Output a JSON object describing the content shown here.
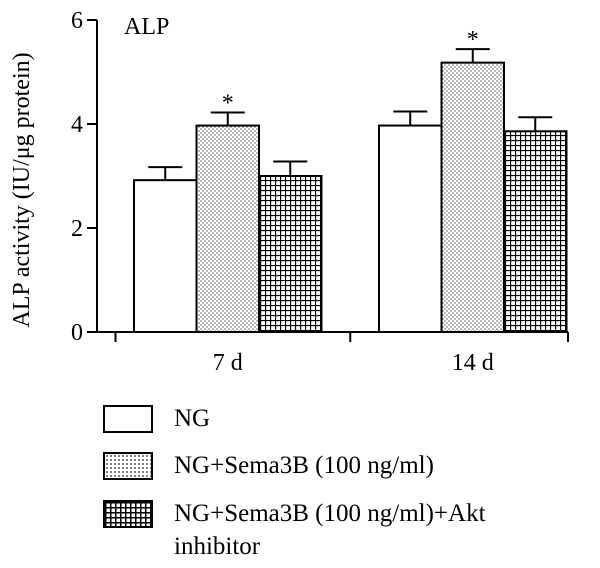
{
  "chart_data": {
    "type": "bar",
    "panel_label": "ALP",
    "ylabel": "ALP activity (IU/μg protein)",
    "xlabel": "",
    "ylim": [
      0,
      6
    ],
    "yticks": [
      0,
      2,
      4,
      6
    ],
    "categories": [
      "7 d",
      "14 d"
    ],
    "series": [
      {
        "name": "NG",
        "values": [
          2.92,
          3.97
        ],
        "errors": [
          0.25,
          0.27
        ],
        "fill": "white"
      },
      {
        "name": "NG+Sema3B (100 ng/ml)",
        "values": [
          3.97,
          5.18
        ],
        "errors": [
          0.25,
          0.26
        ],
        "fill": "dots"
      },
      {
        "name": "NG+Sema3B (100 ng/ml)+Akt inhibitor",
        "values": [
          3.0,
          3.86
        ],
        "errors": [
          0.28,
          0.27
        ],
        "fill": "grid"
      }
    ],
    "annotations": [
      {
        "text": "*",
        "category": "7 d",
        "series": 1
      },
      {
        "text": "*",
        "category": "14 d",
        "series": 1
      }
    ],
    "grid": false,
    "legend_position": "bottom"
  },
  "legend": {
    "line1_item3": "NG+Sema3B (100 ng/ml)+Akt",
    "line2_item3": "inhibitor"
  }
}
